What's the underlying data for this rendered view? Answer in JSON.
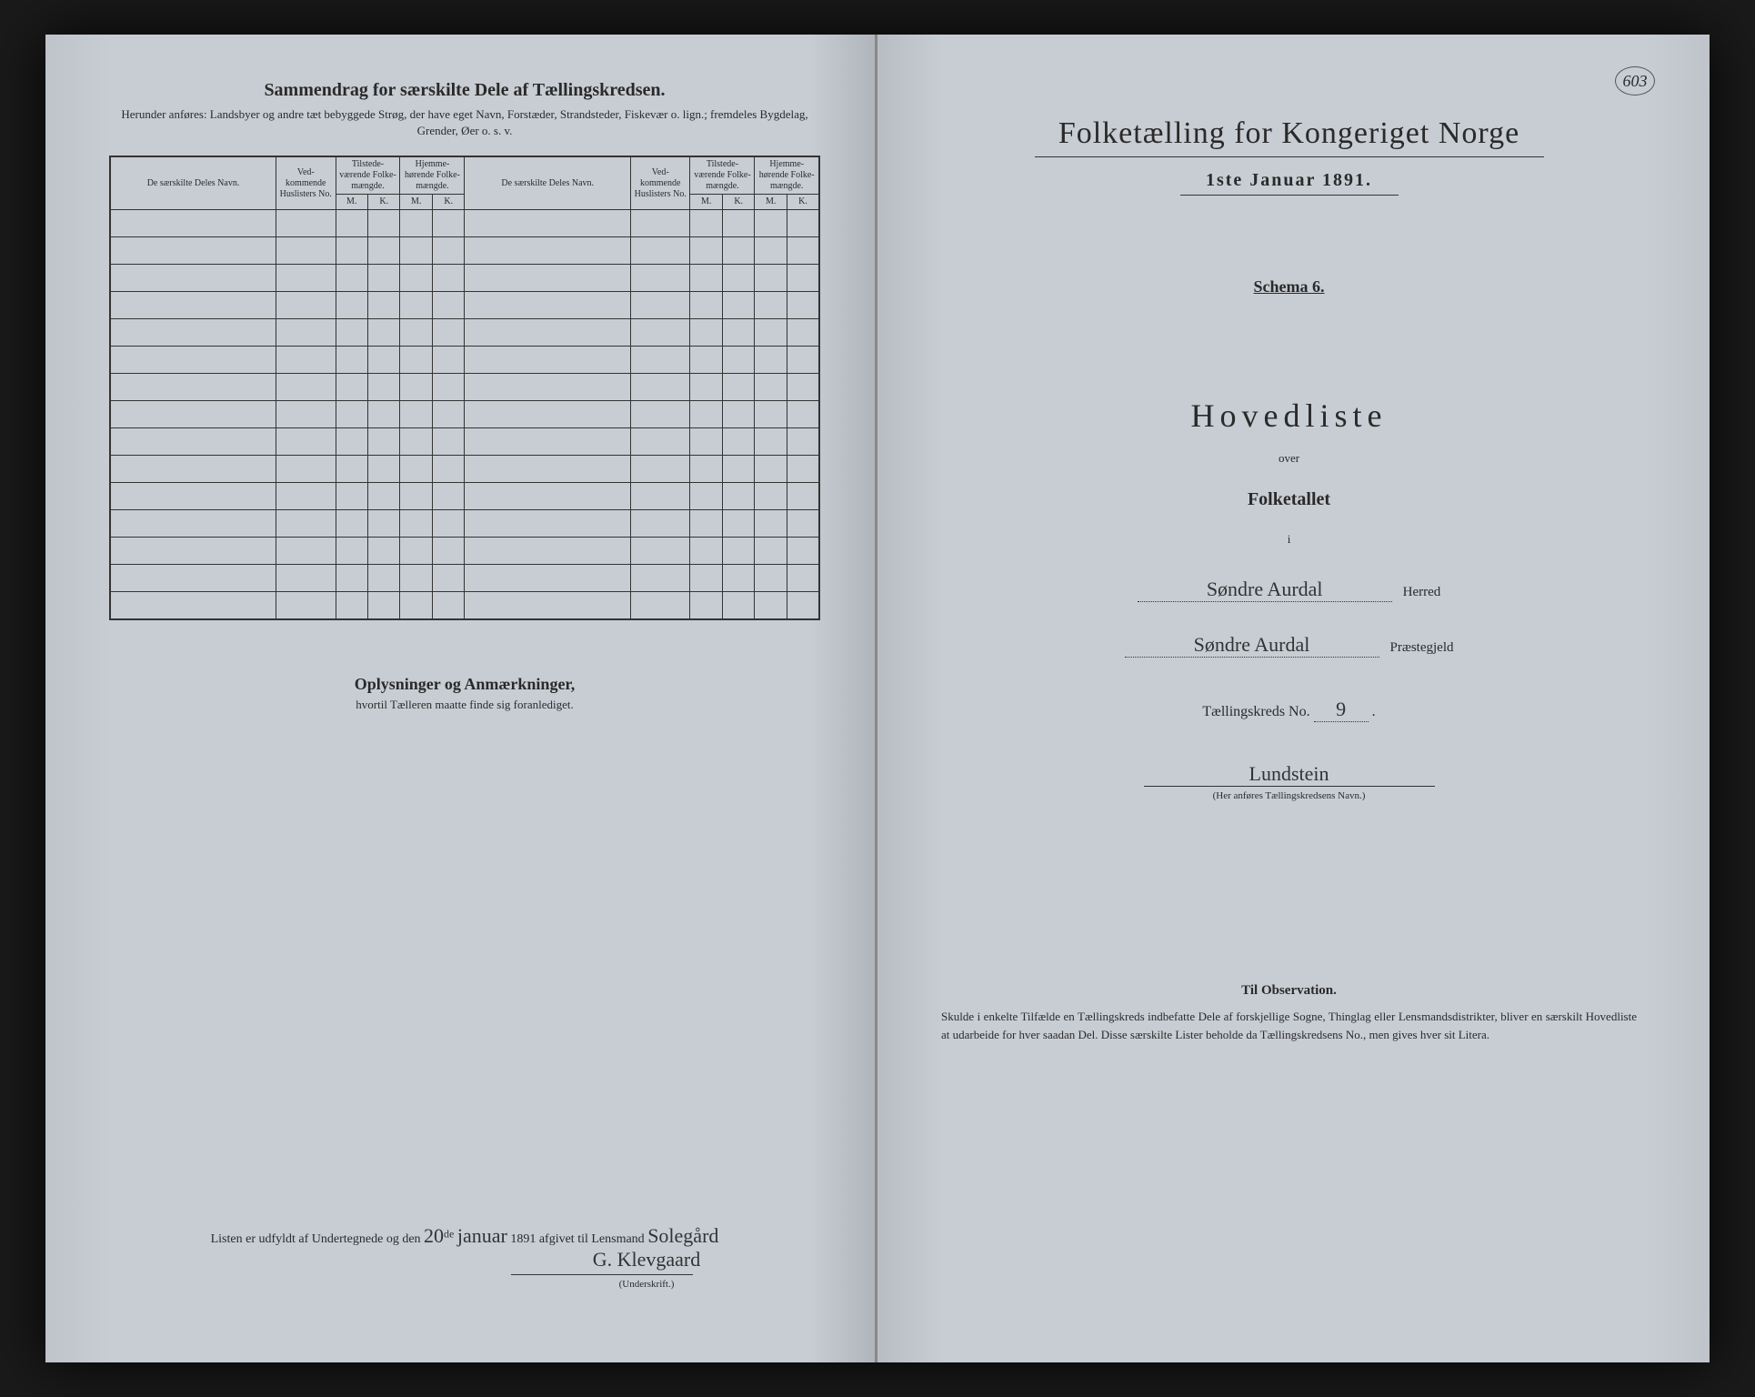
{
  "pageNumber": "603",
  "left": {
    "title": "Sammendrag for særskilte Dele af Tællingskredsen.",
    "subtitle": "Herunder anføres: Landsbyer og andre tæt bebyggede Strøg, der have eget Navn, Forstæder, Strandsteder, Fiskevær o. lign.; fremdeles Bygdelag, Grender, Øer o. s. v.",
    "columns": {
      "navn": "De særskilte Deles Navn.",
      "no": "Ved-kommende Huslisters No.",
      "tilstede": "Tilstede-værende Folke-mængde.",
      "hjemme": "Hjemme-hørende Folke-mængde.",
      "m": "M.",
      "k": "K."
    },
    "rowCount": 15,
    "oplysTitle": "Oplysninger og Anmærkninger,",
    "oplysSub": "hvortil Tælleren maatte finde sig foranlediget.",
    "listenPrefix": "Listen er udfyldt af Undertegnede og den",
    "listenDay": "20",
    "listenDaySup": "de",
    "listenMonth": "januar",
    "listenYear": "1891",
    "listenSuffix": "afgivet til Lensmand",
    "signature1": "Solegård",
    "signature2": "G. Klevgaard",
    "underskrift": "(Underskrift.)"
  },
  "right": {
    "title": "Folketælling for Kongeriget Norge",
    "date": "1ste Januar 1891.",
    "schema": "Schema 6.",
    "hoved": "Hovedliste",
    "over": "over",
    "folketallet": "Folketallet",
    "i": "i",
    "herredValue": "Søndre Aurdal",
    "herredLabel": "Herred",
    "praestValue": "Søndre Aurdal",
    "praestLabel": "Præstegjeld",
    "taellingLabel": "Tællingskreds No.",
    "taellingNo": "9",
    "kredsNavn": "Lundstein",
    "kredsNavnSub": "(Her anføres Tællingskredsens Navn.)",
    "obsTitle": "Til Observation.",
    "obsText": "Skulde i enkelte Tilfælde en Tællingskreds indbefatte Dele af forskjellige Sogne, Thinglag eller Lensmandsdistrikter, bliver en særskilt Hovedliste at udarbeide for hver saadan Del. Disse særskilte Lister beholde da Tællingskredsens No., men gives hver sit Litera."
  }
}
